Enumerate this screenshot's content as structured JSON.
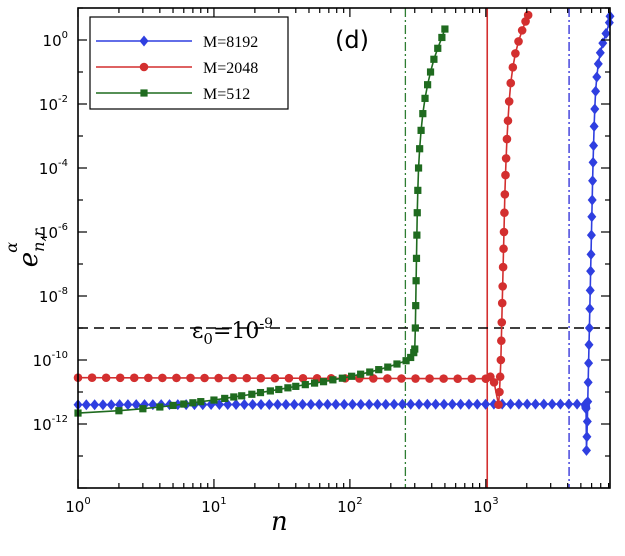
{
  "chart_data": {
    "type": "line",
    "panel_label": "(d)",
    "x_scale": "log",
    "y_scale": "log",
    "xlim": [
      1,
      8192
    ],
    "ylim": [
      1e-14,
      10.0
    ],
    "xlabel": "n",
    "ylabel": {
      "base": "e",
      "subscript": "n,r",
      "superscript": "α"
    },
    "x_ticks": [
      {
        "value": 1,
        "base": "10",
        "exp": "0"
      },
      {
        "value": 10,
        "base": "10",
        "exp": "1"
      },
      {
        "value": 100,
        "base": "10",
        "exp": "2"
      },
      {
        "value": 1000,
        "base": "10",
        "exp": "3"
      }
    ],
    "y_ticks": [
      {
        "value": 1,
        "base": "10",
        "exp": "0"
      },
      {
        "value": 0.01,
        "base": "10",
        "exp": "-2"
      },
      {
        "value": 0.0001,
        "base": "10",
        "exp": "-4"
      },
      {
        "value": 1e-06,
        "base": "10",
        "exp": "-6"
      },
      {
        "value": 1e-08,
        "base": "10",
        "exp": "-8"
      },
      {
        "value": 1e-10,
        "base": "10",
        "exp": "-10"
      },
      {
        "value": 1e-12,
        "base": "10",
        "exp": "-12"
      }
    ],
    "threshold": {
      "value": 1e-09,
      "label_main": "ε",
      "label_sub": "0",
      "label_eq": "=10",
      "label_exp": "-9",
      "color": "#000000"
    },
    "vertical_lines": [
      {
        "x": 256,
        "color": "#2e7d32",
        "style": "dashdot"
      },
      {
        "x": 1024,
        "color": "#d32f2f",
        "style": "solid"
      },
      {
        "x": 4096,
        "color": "#2a2ad8",
        "style": "dashdot"
      }
    ],
    "series": [
      {
        "name": "M=8192",
        "color": "#2f3fe0",
        "marker": "diamond",
        "segments": [
          {
            "type": "flat",
            "x_start": 1,
            "x_end": 5400,
            "count": 62,
            "y_start": 4e-12,
            "y_end": 4.2e-12
          },
          {
            "type": "spike",
            "x_start": 5400,
            "x_end": 5460,
            "count": 8,
            "y_start": 4e-12,
            "y_end": 3e-12
          },
          {
            "type": "curve",
            "points": [
              [
                5500,
                1.5e-13
              ],
              [
                5540,
                4e-13
              ],
              [
                5580,
                1.2e-12
              ],
              [
                5620,
                5e-12
              ],
              [
                5660,
                2e-11
              ],
              [
                5700,
                8e-11
              ],
              [
                5740,
                3e-10
              ],
              [
                5780,
                1e-09
              ],
              [
                5820,
                4e-09
              ],
              [
                5860,
                1.5e-08
              ],
              [
                5900,
                6e-08
              ],
              [
                5940,
                2e-07
              ],
              [
                5980,
                8e-07
              ],
              [
                6020,
                3e-06
              ],
              [
                6060,
                1e-05
              ],
              [
                6100,
                4e-05
              ],
              [
                6150,
                0.00015
              ],
              [
                6200,
                0.0005
              ],
              [
                6260,
                0.002
              ],
              [
                6330,
                0.007
              ],
              [
                6420,
                0.025
              ],
              [
                6550,
                0.07
              ],
              [
                6720,
                0.18
              ],
              [
                6950,
                0.4
              ],
              [
                7250,
                0.8
              ],
              [
                7650,
                1.6
              ],
              [
                8100,
                3.5
              ],
              [
                8192,
                5.5
              ]
            ]
          }
        ]
      },
      {
        "name": "M=2048",
        "color": "#d32f2f",
        "marker": "circle",
        "segments": [
          {
            "type": "flat",
            "x_start": 1,
            "x_end": 1000,
            "count": 30,
            "y_start": 2.8e-11,
            "y_end": 2.6e-11
          },
          {
            "type": "curve",
            "points": [
              [
                1080,
                3e-11
              ],
              [
                1150,
                2e-11
              ],
              [
                1240,
                4e-12
              ],
              [
                1260,
                1e-11
              ],
              [
                1275,
                3e-11
              ],
              [
                1290,
                1e-10
              ],
              [
                1300,
                4e-10
              ],
              [
                1310,
                1.5e-09
              ],
              [
                1320,
                6e-09
              ],
              [
                1330,
                2e-08
              ],
              [
                1340,
                8e-08
              ],
              [
                1350,
                3e-07
              ],
              [
                1360,
                1e-06
              ],
              [
                1370,
                4e-06
              ],
              [
                1380,
                1.5e-05
              ],
              [
                1395,
                6e-05
              ],
              [
                1410,
                0.0002
              ],
              [
                1430,
                0.0008
              ],
              [
                1455,
                0.003
              ],
              [
                1485,
                0.012
              ],
              [
                1525,
                0.045
              ],
              [
                1580,
                0.14
              ],
              [
                1650,
                0.38
              ],
              [
                1740,
                0.9
              ],
              [
                1850,
                2
              ],
              [
                1960,
                3.8
              ],
              [
                2048,
                6
              ]
            ]
          }
        ]
      },
      {
        "name": "M=512",
        "color": "#1f6b1f",
        "marker": "square",
        "segments": [
          {
            "type": "curve",
            "points": [
              [
                1,
                2.2e-12
              ],
              [
                2,
                2.6e-12
              ],
              [
                3,
                3e-12
              ],
              [
                4,
                3.4e-12
              ],
              [
                5,
                3.8e-12
              ],
              [
                6,
                4.2e-12
              ],
              [
                7,
                4.6e-12
              ],
              [
                8,
                5e-12
              ],
              [
                10,
                5.6e-12
              ],
              [
                12,
                6.3e-12
              ],
              [
                14,
                7e-12
              ],
              [
                16,
                7.6e-12
              ],
              [
                19,
                8.5e-12
              ],
              [
                22,
                9.6e-12
              ],
              [
                26,
                1.08e-11
              ],
              [
                30,
                1.2e-11
              ],
              [
                35,
                1.35e-11
              ],
              [
                40,
                1.5e-11
              ],
              [
                47,
                1.7e-11
              ],
              [
                55,
                1.9e-11
              ],
              [
                64,
                2.1e-11
              ],
              [
                75,
                2.4e-11
              ],
              [
                88,
                2.7e-11
              ],
              [
                103,
                3.1e-11
              ],
              [
                120,
                3.6e-11
              ],
              [
                140,
                4.2e-11
              ],
              [
                163,
                5e-11
              ],
              [
                190,
                6e-11
              ],
              [
                222,
                7.5e-11
              ],
              [
                259,
                9.5e-11
              ],
              [
                280,
                1.2e-10
              ],
              [
                295,
                1.7e-10
              ],
              [
                300,
                2.2e-10
              ],
              [
                303,
                1e-09
              ],
              [
                305,
                5e-09
              ],
              [
                307,
                3e-08
              ],
              [
                309,
                1.5e-07
              ],
              [
                311,
                8e-07
              ],
              [
                313,
                4e-06
              ],
              [
                316,
                2e-05
              ],
              [
                320,
                0.0001
              ],
              [
                326,
                0.0004
              ],
              [
                334,
                0.0015
              ],
              [
                344,
                0.005
              ],
              [
                357,
                0.015
              ],
              [
                373,
                0.04
              ],
              [
                392,
                0.1
              ],
              [
                415,
                0.25
              ],
              [
                443,
                0.55
              ],
              [
                475,
                1.2
              ],
              [
                500,
                2.2
              ]
            ]
          }
        ]
      }
    ]
  }
}
